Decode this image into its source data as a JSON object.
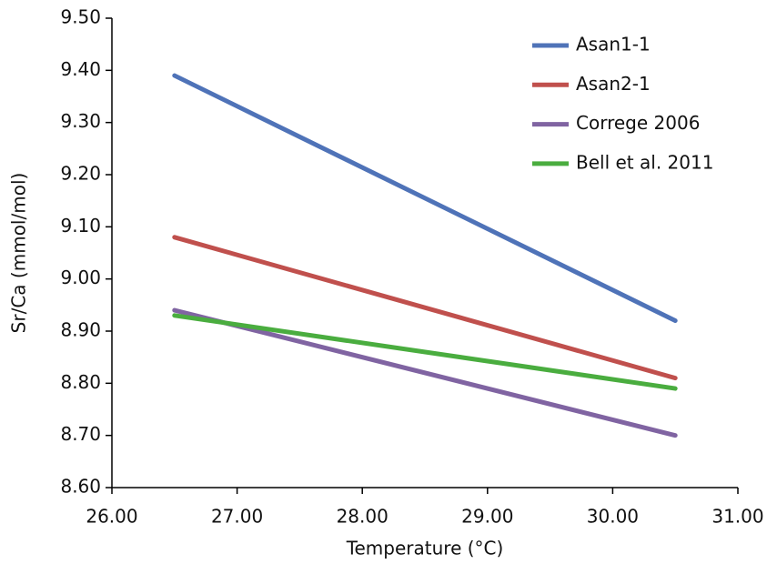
{
  "chart_data": {
    "type": "line",
    "x_label": "Temperature (°C)",
    "y_label": "Sr/Ca (mmol/mol)",
    "x": [
      26.5,
      30.5
    ],
    "series": [
      {
        "name": "Asan1-1",
        "color": "#4f73b8",
        "values": [
          9.39,
          8.92
        ]
      },
      {
        "name": "Asan2-1",
        "color": "#c0504d",
        "values": [
          9.08,
          8.81
        ]
      },
      {
        "name": "Correge 2006",
        "color": "#8064a2",
        "values": [
          8.94,
          8.7
        ]
      },
      {
        "name": "Bell et al. 2011",
        "color": "#4aad3f",
        "values": [
          8.93,
          8.79
        ]
      }
    ],
    "xlim": [
      26,
      31
    ],
    "xticks": [
      {
        "value": 26,
        "label": "26.00"
      },
      {
        "value": 27,
        "label": "27.00"
      },
      {
        "value": 28,
        "label": "28.00"
      },
      {
        "value": 29,
        "label": "29.00"
      },
      {
        "value": 30,
        "label": "30.00"
      },
      {
        "value": 31,
        "label": "31.00"
      }
    ],
    "ylim": [
      8.6,
      9.5
    ],
    "yticks": [
      {
        "value": 8.6,
        "label": "8.60"
      },
      {
        "value": 8.7,
        "label": "8.70"
      },
      {
        "value": 8.8,
        "label": "8.80"
      },
      {
        "value": 8.9,
        "label": "8.90"
      },
      {
        "value": 9.0,
        "label": "9.00"
      },
      {
        "value": 9.1,
        "label": "9.10"
      },
      {
        "value": 9.2,
        "label": "9.20"
      },
      {
        "value": 9.3,
        "label": "9.30"
      },
      {
        "value": 9.4,
        "label": "9.40"
      },
      {
        "value": 9.5,
        "label": "9.50"
      }
    ],
    "grid": false,
    "legend": "top-right"
  }
}
